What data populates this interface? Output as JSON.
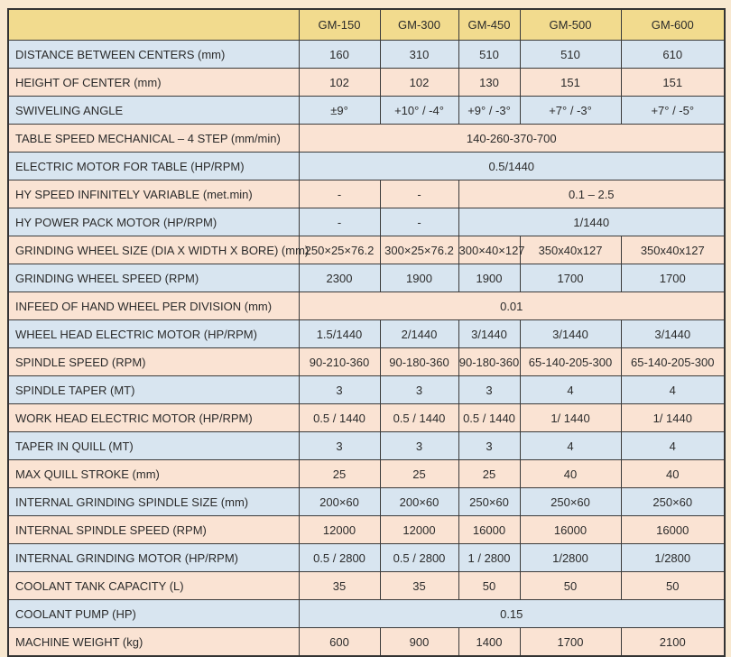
{
  "colors": {
    "page_bg": "#F8E8D0",
    "header_bg": "#F2DB8E",
    "row_blue": "#D8E5F0",
    "row_peach": "#FAE3D3",
    "border_dark": "#333333",
    "grid_line": "#3B3B3B",
    "text": "#2B2B2B"
  },
  "table": {
    "columns": [
      "",
      "GM-150",
      "GM-300",
      "GM-450",
      "GM-500",
      "GM-600"
    ],
    "rows": [
      {
        "label": "DISTANCE BETWEEN CENTERS (mm)",
        "cells": [
          {
            "text": "160"
          },
          {
            "text": "310"
          },
          {
            "text": "510"
          },
          {
            "text": "510"
          },
          {
            "text": "610"
          }
        ]
      },
      {
        "label": "HEIGHT OF CENTER (mm)",
        "cells": [
          {
            "text": "102"
          },
          {
            "text": "102"
          },
          {
            "text": "130"
          },
          {
            "text": "151"
          },
          {
            "text": "151"
          }
        ]
      },
      {
        "label": "SWIVELING ANGLE",
        "cells": [
          {
            "text": "±9°"
          },
          {
            "text": "+10° / -4°"
          },
          {
            "text": "+9° / -3°"
          },
          {
            "text": "+7° / -3°"
          },
          {
            "text": "+7° / -5°"
          }
        ]
      },
      {
        "label": "TABLE SPEED MECHANICAL – 4 STEP (mm/min)",
        "cells": [
          {
            "text": "140-260-370-700",
            "span": 5
          }
        ]
      },
      {
        "label": "ELECTRIC MOTOR FOR TABLE (HP/RPM)",
        "cells": [
          {
            "text": "0.5/1440",
            "span": 5
          }
        ]
      },
      {
        "label": "HY SPEED INFINITELY VARIABLE (met.min)",
        "cells": [
          {
            "text": "-"
          },
          {
            "text": "-"
          },
          {
            "text": "0.1 – 2.5",
            "span": 3
          }
        ]
      },
      {
        "label": "HY POWER PACK MOTOR (HP/RPM)",
        "cells": [
          {
            "text": "-"
          },
          {
            "text": "-"
          },
          {
            "text": "1/1440",
            "span": 3
          }
        ]
      },
      {
        "label": "GRINDING WHEEL SIZE (DIA X WIDTH X BORE) (mm)",
        "cells": [
          {
            "text": "250×25×76.2"
          },
          {
            "text": "300×25×76.2"
          },
          {
            "text": "300×40×127"
          },
          {
            "text": "350x40x127"
          },
          {
            "text": "350x40x127"
          }
        ]
      },
      {
        "label": "GRINDING WHEEL SPEED (RPM)",
        "cells": [
          {
            "text": "2300"
          },
          {
            "text": "1900"
          },
          {
            "text": "1900"
          },
          {
            "text": "1700"
          },
          {
            "text": "1700"
          }
        ]
      },
      {
        "label": "INFEED OF HAND WHEEL PER DIVISION (mm)",
        "cells": [
          {
            "text": "0.01",
            "span": 5
          }
        ]
      },
      {
        "label": "WHEEL HEAD ELECTRIC MOTOR (HP/RPM)",
        "cells": [
          {
            "text": "1.5/1440"
          },
          {
            "text": "2/1440"
          },
          {
            "text": "3/1440"
          },
          {
            "text": "3/1440"
          },
          {
            "text": "3/1440"
          }
        ]
      },
      {
        "label": "SPINDLE SPEED (RPM)",
        "cells": [
          {
            "text": "90-210-360"
          },
          {
            "text": "90-180-360"
          },
          {
            "text": "90-180-360"
          },
          {
            "text": "65-140-205-300"
          },
          {
            "text": "65-140-205-300"
          }
        ]
      },
      {
        "label": "SPINDLE TAPER (MT)",
        "cells": [
          {
            "text": "3"
          },
          {
            "text": "3"
          },
          {
            "text": "3"
          },
          {
            "text": "4"
          },
          {
            "text": "4"
          }
        ]
      },
      {
        "label": "WORK HEAD ELECTRIC MOTOR (HP/RPM)",
        "cells": [
          {
            "text": "0.5 / 1440"
          },
          {
            "text": "0.5 / 1440"
          },
          {
            "text": "0.5 / 1440"
          },
          {
            "text": "1/ 1440"
          },
          {
            "text": "1/ 1440"
          }
        ]
      },
      {
        "label": "TAPER IN QUILL (MT)",
        "cells": [
          {
            "text": "3"
          },
          {
            "text": "3"
          },
          {
            "text": "3"
          },
          {
            "text": "4"
          },
          {
            "text": "4"
          }
        ]
      },
      {
        "label": "MAX QUILL STROKE (mm)",
        "cells": [
          {
            "text": "25"
          },
          {
            "text": "25"
          },
          {
            "text": "25"
          },
          {
            "text": "40"
          },
          {
            "text": "40"
          }
        ]
      },
      {
        "label": "INTERNAL GRINDING SPINDLE SIZE (mm)",
        "cells": [
          {
            "text": "200×60"
          },
          {
            "text": "200×60"
          },
          {
            "text": "250×60"
          },
          {
            "text": "250×60"
          },
          {
            "text": "250×60"
          }
        ]
      },
      {
        "label": "INTERNAL SPINDLE SPEED (RPM)",
        "cells": [
          {
            "text": "12000"
          },
          {
            "text": "12000"
          },
          {
            "text": "16000"
          },
          {
            "text": "16000"
          },
          {
            "text": "16000"
          }
        ]
      },
      {
        "label": "INTERNAL GRINDING MOTOR (HP/RPM)",
        "cells": [
          {
            "text": "0.5 / 2800"
          },
          {
            "text": "0.5 / 2800"
          },
          {
            "text": "1 / 2800"
          },
          {
            "text": "1/2800"
          },
          {
            "text": "1/2800"
          }
        ]
      },
      {
        "label": "COOLANT TANK CAPACITY (L)",
        "cells": [
          {
            "text": "35"
          },
          {
            "text": "35"
          },
          {
            "text": "50"
          },
          {
            "text": "50"
          },
          {
            "text": "50"
          }
        ]
      },
      {
        "label": "COOLANT PUMP (HP)",
        "cells": [
          {
            "text": "0.15",
            "span": 5
          }
        ]
      },
      {
        "label": "MACHINE WEIGHT (kg)",
        "cells": [
          {
            "text": "600"
          },
          {
            "text": "900"
          },
          {
            "text": "1400"
          },
          {
            "text": "1700"
          },
          {
            "text": "2100"
          }
        ]
      }
    ]
  }
}
